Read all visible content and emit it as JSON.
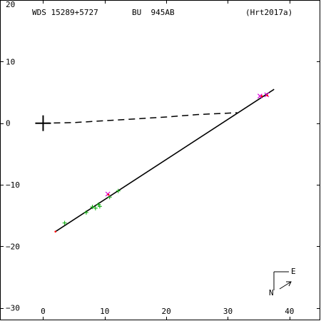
{
  "header": {
    "wds_id": "WDS 15289+5727",
    "discoverer": "BU  945AB",
    "reference": "(Hrt2017a)"
  },
  "compass": {
    "east_label": "E",
    "north_label": "N"
  },
  "chart_data": {
    "type": "scatter",
    "title": "",
    "xlabel": "",
    "ylabel": "",
    "xlim": [
      -7,
      45
    ],
    "ylim": [
      -32,
      20
    ],
    "x_ticks": [
      0,
      10,
      20,
      30,
      40
    ],
    "y_ticks": [
      20,
      10,
      0,
      -10,
      -20,
      -30
    ],
    "y_tick_labels": [
      "20",
      "10",
      "0",
      "−10",
      "−20",
      "−30"
    ],
    "primary_star": {
      "x": 0,
      "y": 0
    },
    "orbit_line": {
      "from": [
        2,
        -17.6
      ],
      "to": [
        37.5,
        5.5
      ]
    },
    "dashed_line": [
      [
        0,
        0
      ],
      [
        5,
        0.1
      ],
      [
        10,
        0.4
      ],
      [
        15,
        0.7
      ],
      [
        20,
        1.0
      ],
      [
        25,
        1.4
      ],
      [
        31.5,
        1.7
      ]
    ],
    "series": [
      {
        "color": "#00aa00",
        "marker": "plus",
        "points": [
          [
            3.5,
            -16.2
          ],
          [
            7.0,
            -14.5
          ],
          [
            8.0,
            -13.6
          ],
          [
            8.5,
            -13.8
          ],
          [
            9.0,
            -13.2
          ],
          [
            9.2,
            -13.5
          ],
          [
            10.8,
            -12.0
          ],
          [
            12.2,
            -11.0
          ]
        ]
      },
      {
        "color": "#dd00dd",
        "marker": "x",
        "points": [
          [
            10.5,
            -11.5
          ],
          [
            35.2,
            4.4
          ],
          [
            36.3,
            4.6
          ]
        ]
      },
      {
        "color": "#ff0000",
        "marker": "dot",
        "points": [
          [
            2.0,
            -17.6
          ],
          [
            10.6,
            -11.6
          ],
          [
            35.5,
            4.4
          ],
          [
            36.4,
            4.5
          ]
        ]
      }
    ]
  }
}
